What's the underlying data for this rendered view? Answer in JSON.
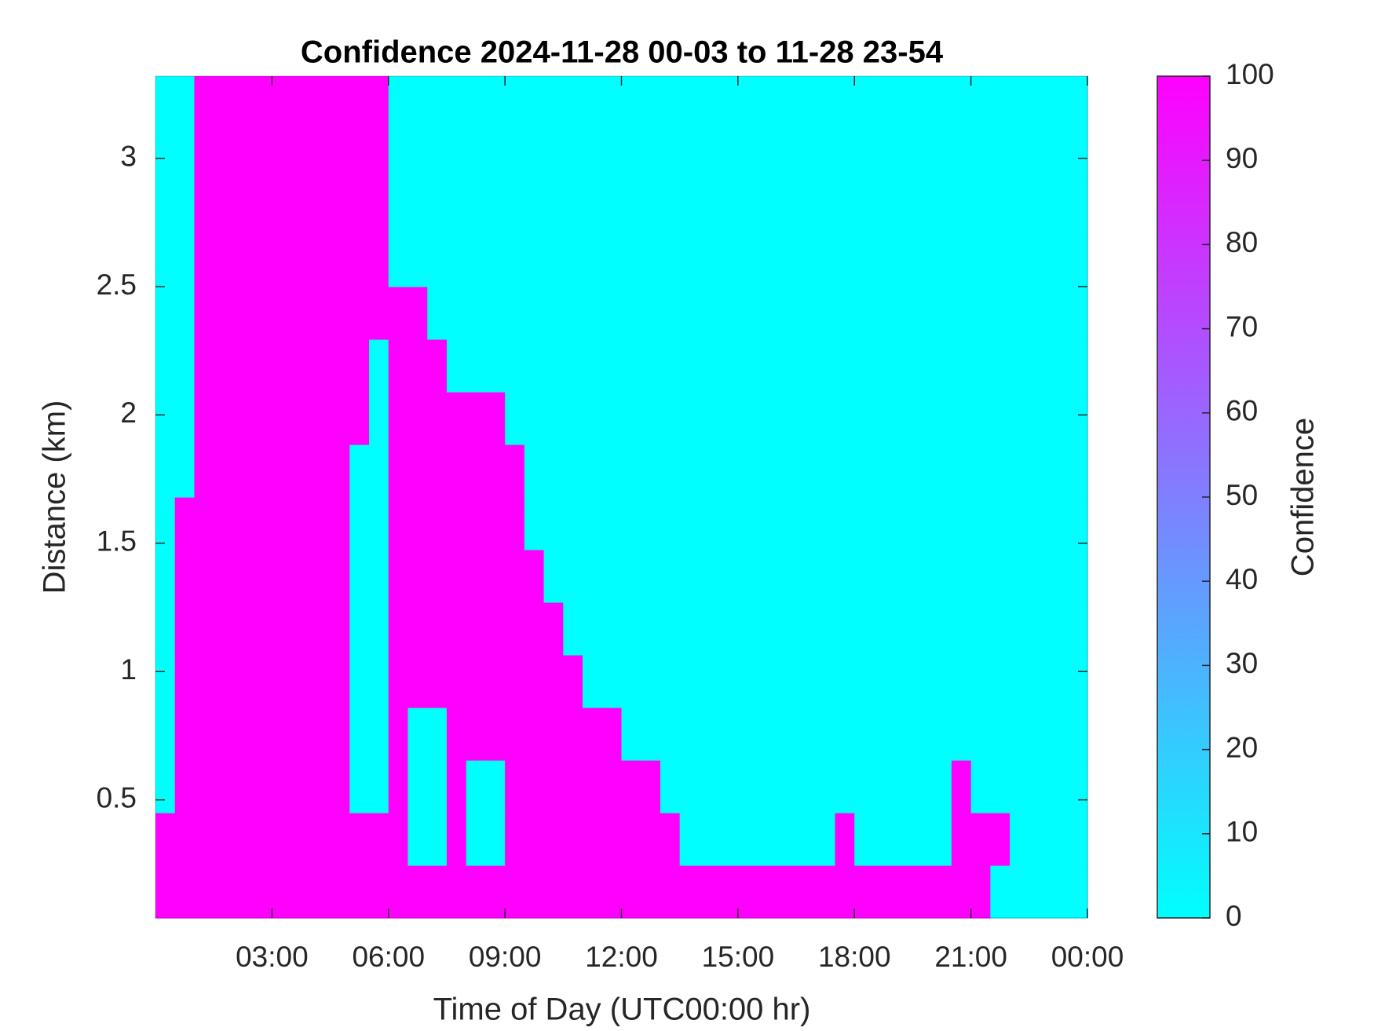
{
  "chart_data": {
    "type": "heatmap",
    "title": "Confidence 2024-11-28 00-03 to 11-28 23-54",
    "x_label": "Time of Day (UTC00:00 hr)",
    "y_label": "Distance (km)",
    "colorbar_label": "Confidence",
    "xlim": [
      0,
      24
    ],
    "xticks": [
      {
        "value": 3,
        "label": "03:00"
      },
      {
        "value": 6,
        "label": "06:00"
      },
      {
        "value": 9,
        "label": "09:00"
      },
      {
        "value": 12,
        "label": "12:00"
      },
      {
        "value": 15,
        "label": "15:00"
      },
      {
        "value": 18,
        "label": "18:00"
      },
      {
        "value": 21,
        "label": "21:00"
      },
      {
        "value": 24,
        "label": "00:00"
      }
    ],
    "ylim": [
      0.04,
      3.32
    ],
    "yticks": [
      0.5,
      1,
      1.5,
      2,
      2.5,
      3
    ],
    "clim": [
      0,
      100
    ],
    "cticks": [
      0,
      10,
      20,
      30,
      40,
      50,
      60,
      70,
      80,
      90,
      100
    ],
    "colormap": [
      "#00ffff",
      "#ff00ff"
    ],
    "z": [
      [
        100,
        100,
        100,
        100,
        100,
        100,
        100,
        100,
        100,
        100,
        100,
        100,
        100,
        100,
        100,
        100,
        100,
        100,
        100,
        100,
        100,
        100,
        100,
        100,
        100,
        100,
        100,
        100,
        100,
        100,
        100,
        100,
        100,
        100,
        100,
        100,
        100,
        100,
        100,
        100,
        100,
        100,
        100,
        0,
        0,
        0,
        0,
        0
      ],
      [
        100,
        100,
        100,
        100,
        100,
        100,
        100,
        100,
        100,
        100,
        100,
        100,
        100,
        0,
        0,
        100,
        0,
        0,
        100,
        100,
        100,
        100,
        100,
        100,
        100,
        100,
        100,
        0,
        0,
        0,
        0,
        0,
        0,
        0,
        0,
        100,
        0,
        0,
        0,
        0,
        0,
        100,
        100,
        100,
        0,
        0,
        0,
        0
      ],
      [
        0,
        100,
        100,
        100,
        100,
        100,
        100,
        100,
        100,
        100,
        0,
        0,
        100,
        0,
        0,
        100,
        0,
        0,
        100,
        100,
        100,
        100,
        100,
        100,
        100,
        100,
        0,
        0,
        0,
        0,
        0,
        0,
        0,
        0,
        0,
        0,
        0,
        0,
        0,
        0,
        0,
        100,
        0,
        0,
        0,
        0,
        0,
        0
      ],
      [
        0,
        100,
        100,
        100,
        100,
        100,
        100,
        100,
        100,
        100,
        0,
        0,
        100,
        0,
        0,
        100,
        100,
        100,
        100,
        100,
        100,
        100,
        100,
        100,
        0,
        0,
        0,
        0,
        0,
        0,
        0,
        0,
        0,
        0,
        0,
        0,
        0,
        0,
        0,
        0,
        0,
        0,
        0,
        0,
        0,
        0,
        0,
        0
      ],
      [
        0,
        100,
        100,
        100,
        100,
        100,
        100,
        100,
        100,
        100,
        0,
        0,
        100,
        100,
        100,
        100,
        100,
        100,
        100,
        100,
        100,
        100,
        0,
        0,
        0,
        0,
        0,
        0,
        0,
        0,
        0,
        0,
        0,
        0,
        0,
        0,
        0,
        0,
        0,
        0,
        0,
        0,
        0,
        0,
        0,
        0,
        0,
        0
      ],
      [
        0,
        100,
        100,
        100,
        100,
        100,
        100,
        100,
        100,
        100,
        0,
        0,
        100,
        100,
        100,
        100,
        100,
        100,
        100,
        100,
        100,
        0,
        0,
        0,
        0,
        0,
        0,
        0,
        0,
        0,
        0,
        0,
        0,
        0,
        0,
        0,
        0,
        0,
        0,
        0,
        0,
        0,
        0,
        0,
        0,
        0,
        0,
        0
      ],
      [
        0,
        100,
        100,
        100,
        100,
        100,
        100,
        100,
        100,
        100,
        0,
        0,
        100,
        100,
        100,
        100,
        100,
        100,
        100,
        100,
        0,
        0,
        0,
        0,
        0,
        0,
        0,
        0,
        0,
        0,
        0,
        0,
        0,
        0,
        0,
        0,
        0,
        0,
        0,
        0,
        0,
        0,
        0,
        0,
        0,
        0,
        0,
        0
      ],
      [
        0,
        100,
        100,
        100,
        100,
        100,
        100,
        100,
        100,
        100,
        0,
        0,
        100,
        100,
        100,
        100,
        100,
        100,
        100,
        0,
        0,
        0,
        0,
        0,
        0,
        0,
        0,
        0,
        0,
        0,
        0,
        0,
        0,
        0,
        0,
        0,
        0,
        0,
        0,
        0,
        0,
        0,
        0,
        0,
        0,
        0,
        0,
        0
      ],
      [
        0,
        0,
        100,
        100,
        100,
        100,
        100,
        100,
        100,
        100,
        0,
        0,
        100,
        100,
        100,
        100,
        100,
        100,
        100,
        0,
        0,
        0,
        0,
        0,
        0,
        0,
        0,
        0,
        0,
        0,
        0,
        0,
        0,
        0,
        0,
        0,
        0,
        0,
        0,
        0,
        0,
        0,
        0,
        0,
        0,
        0,
        0,
        0
      ],
      [
        0,
        0,
        100,
        100,
        100,
        100,
        100,
        100,
        100,
        100,
        100,
        0,
        100,
        100,
        100,
        100,
        100,
        100,
        0,
        0,
        0,
        0,
        0,
        0,
        0,
        0,
        0,
        0,
        0,
        0,
        0,
        0,
        0,
        0,
        0,
        0,
        0,
        0,
        0,
        0,
        0,
        0,
        0,
        0,
        0,
        0,
        0,
        0
      ],
      [
        0,
        0,
        100,
        100,
        100,
        100,
        100,
        100,
        100,
        100,
        100,
        0,
        100,
        100,
        100,
        0,
        0,
        0,
        0,
        0,
        0,
        0,
        0,
        0,
        0,
        0,
        0,
        0,
        0,
        0,
        0,
        0,
        0,
        0,
        0,
        0,
        0,
        0,
        0,
        0,
        0,
        0,
        0,
        0,
        0,
        0,
        0,
        0
      ],
      [
        0,
        0,
        100,
        100,
        100,
        100,
        100,
        100,
        100,
        100,
        100,
        100,
        100,
        100,
        0,
        0,
        0,
        0,
        0,
        0,
        0,
        0,
        0,
        0,
        0,
        0,
        0,
        0,
        0,
        0,
        0,
        0,
        0,
        0,
        0,
        0,
        0,
        0,
        0,
        0,
        0,
        0,
        0,
        0,
        0,
        0,
        0,
        0
      ],
      [
        0,
        0,
        100,
        100,
        100,
        100,
        100,
        100,
        100,
        100,
        100,
        100,
        0,
        0,
        0,
        0,
        0,
        0,
        0,
        0,
        0,
        0,
        0,
        0,
        0,
        0,
        0,
        0,
        0,
        0,
        0,
        0,
        0,
        0,
        0,
        0,
        0,
        0,
        0,
        0,
        0,
        0,
        0,
        0,
        0,
        0,
        0,
        0
      ],
      [
        0,
        0,
        100,
        100,
        100,
        100,
        100,
        100,
        100,
        100,
        100,
        100,
        0,
        0,
        0,
        0,
        0,
        0,
        0,
        0,
        0,
        0,
        0,
        0,
        0,
        0,
        0,
        0,
        0,
        0,
        0,
        0,
        0,
        0,
        0,
        0,
        0,
        0,
        0,
        0,
        0,
        0,
        0,
        0,
        0,
        0,
        0,
        0
      ],
      [
        0,
        0,
        100,
        100,
        100,
        100,
        100,
        100,
        100,
        100,
        100,
        100,
        0,
        0,
        0,
        0,
        0,
        0,
        0,
        0,
        0,
        0,
        0,
        0,
        0,
        0,
        0,
        0,
        0,
        0,
        0,
        0,
        0,
        0,
        0,
        0,
        0,
        0,
        0,
        0,
        0,
        0,
        0,
        0,
        0,
        0,
        0,
        0
      ],
      [
        0,
        0,
        100,
        100,
        100,
        100,
        100,
        100,
        100,
        100,
        100,
        100,
        0,
        0,
        0,
        0,
        0,
        0,
        0,
        0,
        0,
        0,
        0,
        0,
        0,
        0,
        0,
        0,
        0,
        0,
        0,
        0,
        0,
        0,
        0,
        0,
        0,
        0,
        0,
        0,
        0,
        0,
        0,
        0,
        0,
        0,
        0,
        0
      ]
    ]
  }
}
